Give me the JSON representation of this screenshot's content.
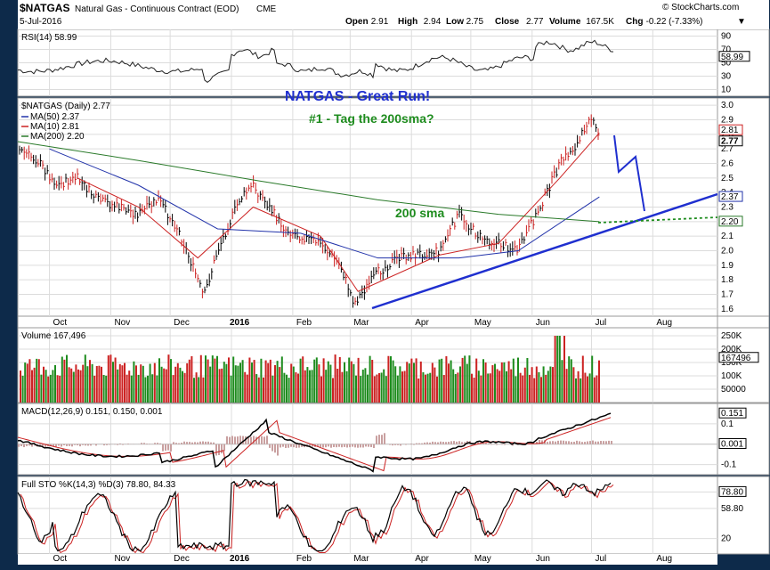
{
  "header": {
    "symbol": "$NATGAS",
    "name": "Natural Gas - Continuous Contract (EOD)",
    "exchange": "CME",
    "date": "5-Jul-2016",
    "ohlc": {
      "open": "2.91",
      "high": "2.94",
      "low": "2.75",
      "close": "2.77",
      "volume": "167.5K",
      "chg": "-0.22 (-7.33%)"
    },
    "open_label": "Open",
    "high_label": "High",
    "low_label": "Low",
    "close_label": "Close",
    "volume_label": "Volume",
    "chg_label": "Chg",
    "chg_arrow": "▼",
    "watermark": "© StockCharts.com"
  },
  "annotations": {
    "title": "NATGAS - Great Run!",
    "subtitle": "#1 - Tag the 200sma?",
    "sma_label": "200 sma",
    "title_color": "#1f2fcf",
    "green_color": "#1e8c1e",
    "trend_color": "#1f2fcf"
  },
  "months": [
    "Oct",
    "Nov",
    "Dec",
    "2016",
    "Feb",
    "Mar",
    "Apr",
    "May",
    "Jun",
    "Jul",
    "Aug"
  ],
  "panels": {
    "rsi": {
      "label": "RSI(14) 58.99",
      "ticks": [
        "90",
        "70",
        "50",
        "30",
        "10"
      ],
      "ylim": [
        0,
        100
      ],
      "last": "58.99"
    },
    "price": {
      "label": "$NATGAS (Daily) 2.77",
      "legend": [
        {
          "label": "MA(50) 2.37",
          "color": "#2233aa"
        },
        {
          "label": "MA(10) 2.81",
          "color": "#cc2222"
        },
        {
          "label": "MA(200) 2.20",
          "color": "#2a7a2a"
        }
      ],
      "ticks": [
        "3.0",
        "2.9",
        "2.8",
        "2.7",
        "2.6",
        "2.5",
        "2.4",
        "2.3",
        "2.2",
        "2.1",
        "2.0",
        "1.9",
        "1.8",
        "1.7",
        "1.6"
      ],
      "right_labels": [
        "2.81",
        "2.77",
        "2.37",
        "2.20"
      ],
      "ylim": [
        1.55,
        3.05
      ]
    },
    "volume": {
      "label": "Volume 167,496",
      "ticks": [
        "250K",
        "200K",
        "150K",
        "100K",
        "50000"
      ],
      "last": "167496"
    },
    "macd": {
      "label": "MACD(12,26,9) 0.151, 0.150, 0.001",
      "ticks": [
        "0.1",
        "-0.1"
      ],
      "right_labels": [
        "0.151",
        "0.001"
      ]
    },
    "sto": {
      "label": "Full STO %K(14,3) %D(3) 78.80, 84.33",
      "ticks": [
        "58.80",
        "20"
      ],
      "right_labels": [
        "78.80"
      ]
    }
  },
  "chart_data": {
    "type": "line",
    "title": "NATGAS - Great Run!",
    "x_range": [
      "2015-09-15",
      "2016-08-31"
    ],
    "price_ylim": [
      1.6,
      3.0
    ],
    "price_series": [
      {
        "name": "$NATGAS (Daily)",
        "values": [
          {
            "x": "2015-09-15",
            "y": 2.7
          },
          {
            "x": "2015-09-25",
            "y": 2.62
          },
          {
            "x": "2015-10-05",
            "y": 2.45
          },
          {
            "x": "2015-10-15",
            "y": 2.5
          },
          {
            "x": "2015-10-25",
            "y": 2.35
          },
          {
            "x": "2015-11-05",
            "y": 2.3
          },
          {
            "x": "2015-11-15",
            "y": 2.25
          },
          {
            "x": "2015-11-25",
            "y": 2.35
          },
          {
            "x": "2015-12-05",
            "y": 2.15
          },
          {
            "x": "2015-12-15",
            "y": 1.8
          },
          {
            "x": "2015-12-18",
            "y": 1.68
          },
          {
            "x": "2015-12-25",
            "y": 2.0
          },
          {
            "x": "2016-01-05",
            "y": 2.35
          },
          {
            "x": "2016-01-12",
            "y": 2.45
          },
          {
            "x": "2016-01-20",
            "y": 2.3
          },
          {
            "x": "2016-01-28",
            "y": 2.15
          },
          {
            "x": "2016-02-05",
            "y": 2.1
          },
          {
            "x": "2016-02-15",
            "y": 2.05
          },
          {
            "x": "2016-02-25",
            "y": 1.9
          },
          {
            "x": "2016-03-03",
            "y": 1.64
          },
          {
            "x": "2016-03-15",
            "y": 1.85
          },
          {
            "x": "2016-03-25",
            "y": 1.95
          },
          {
            "x": "2016-04-05",
            "y": 1.98
          },
          {
            "x": "2016-04-15",
            "y": 2.0
          },
          {
            "x": "2016-04-25",
            "y": 2.25
          },
          {
            "x": "2016-05-05",
            "y": 2.1
          },
          {
            "x": "2016-05-15",
            "y": 2.05
          },
          {
            "x": "2016-05-25",
            "y": 2.0
          },
          {
            "x": "2016-06-05",
            "y": 2.3
          },
          {
            "x": "2016-06-15",
            "y": 2.6
          },
          {
            "x": "2016-06-25",
            "y": 2.75
          },
          {
            "x": "2016-06-30",
            "y": 2.94
          },
          {
            "x": "2016-07-05",
            "y": 2.77
          }
        ]
      },
      {
        "name": "MA(10)",
        "values": [
          {
            "x": "2015-10-15",
            "y": 2.5
          },
          {
            "x": "2015-11-15",
            "y": 2.3
          },
          {
            "x": "2015-12-15",
            "y": 1.95
          },
          {
            "x": "2016-01-12",
            "y": 2.3
          },
          {
            "x": "2016-02-15",
            "y": 2.1
          },
          {
            "x": "2016-03-05",
            "y": 1.72
          },
          {
            "x": "2016-04-15",
            "y": 1.97
          },
          {
            "x": "2016-05-15",
            "y": 2.05
          },
          {
            "x": "2016-06-15",
            "y": 2.5
          },
          {
            "x": "2016-07-05",
            "y": 2.81
          }
        ]
      },
      {
        "name": "MA(50)",
        "values": [
          {
            "x": "2015-10-01",
            "y": 2.7
          },
          {
            "x": "2015-11-15",
            "y": 2.45
          },
          {
            "x": "2015-12-25",
            "y": 2.15
          },
          {
            "x": "2016-02-05",
            "y": 2.12
          },
          {
            "x": "2016-03-15",
            "y": 1.95
          },
          {
            "x": "2016-04-25",
            "y": 1.95
          },
          {
            "x": "2016-05-25",
            "y": 2.0
          },
          {
            "x": "2016-07-05",
            "y": 2.37
          }
        ]
      },
      {
        "name": "MA(200)",
        "values": [
          {
            "x": "2015-09-15",
            "y": 2.75
          },
          {
            "x": "2015-11-15",
            "y": 2.62
          },
          {
            "x": "2016-01-15",
            "y": 2.48
          },
          {
            "x": "2016-03-15",
            "y": 2.35
          },
          {
            "x": "2016-05-15",
            "y": 2.25
          },
          {
            "x": "2016-07-05",
            "y": 2.2
          }
        ]
      }
    ]
  }
}
